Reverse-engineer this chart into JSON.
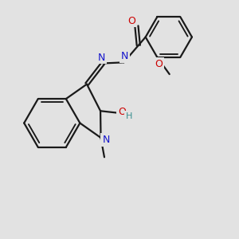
{
  "bg": "#e2e2e2",
  "bc": "#1a1a1a",
  "NC": "#1414cc",
  "OC": "#cc0000",
  "HC": "#3a9090",
  "lw": 1.6,
  "fs": 8.5,
  "xlim": [
    0,
    10
  ],
  "ylim": [
    0,
    10
  ]
}
